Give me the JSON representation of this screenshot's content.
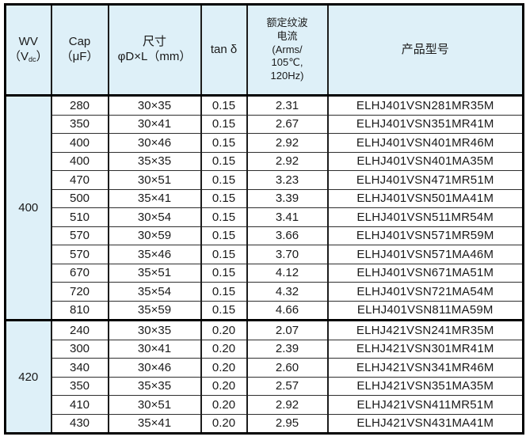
{
  "colors": {
    "header_bg": "#def0f8",
    "outer_border": "#000000",
    "row_line": "#2e2e2e"
  },
  "header": {
    "wv_line1": "WV",
    "wv_line2_pre": "（V",
    "wv_line2_sub": "dc",
    "wv_line2_post": "）",
    "cap_line1": "Cap",
    "cap_line2": "（μF）",
    "size_line1": "尺寸",
    "size_line2": "φD×L（mm）",
    "tand": "tan δ",
    "ripple_lines": [
      "额定纹波",
      "电流",
      "(Arms/",
      "105℃,",
      "120Hz)"
    ],
    "model": "产品型号"
  },
  "sections": [
    {
      "wv": "400",
      "rows": [
        {
          "cap": "280",
          "size": "30×35",
          "tand": "0.15",
          "ripple": "2.31",
          "model": "ELHJ401VSN281MR35M"
        },
        {
          "cap": "350",
          "size": "30×41",
          "tand": "0.15",
          "ripple": "2.67",
          "model": "ELHJ401VSN351MR41M"
        },
        {
          "cap": "400",
          "size": "30×46",
          "tand": "0.15",
          "ripple": "2.92",
          "model": "ELHJ401VSN401MR46M"
        },
        {
          "cap": "400",
          "size": "35×35",
          "tand": "0.15",
          "ripple": "2.92",
          "model": "ELHJ401VSN401MA35M"
        },
        {
          "cap": "470",
          "size": "30×51",
          "tand": "0.15",
          "ripple": "3.23",
          "model": "ELHJ401VSN471MR51M"
        },
        {
          "cap": "500",
          "size": "35×41",
          "tand": "0.15",
          "ripple": "3.39",
          "model": "ELHJ401VSN501MA41M"
        },
        {
          "cap": "510",
          "size": "30×54",
          "tand": "0.15",
          "ripple": "3.41",
          "model": "ELHJ401VSN511MR54M"
        },
        {
          "cap": "570",
          "size": "30×59",
          "tand": "0.15",
          "ripple": "3.66",
          "model": "ELHJ401VSN571MR59M"
        },
        {
          "cap": "570",
          "size": "35×46",
          "tand": "0.15",
          "ripple": "3.70",
          "model": "ELHJ401VSN571MA46M"
        },
        {
          "cap": "670",
          "size": "35×51",
          "tand": "0.15",
          "ripple": "4.12",
          "model": "ELHJ401VSN671MA51M"
        },
        {
          "cap": "720",
          "size": "35×54",
          "tand": "0.15",
          "ripple": "4.32",
          "model": "ELHJ401VSN721MA54M"
        },
        {
          "cap": "810",
          "size": "35×59",
          "tand": "0.15",
          "ripple": "4.66",
          "model": "ELHJ401VSN811MA59M"
        }
      ]
    },
    {
      "wv": "420",
      "rows": [
        {
          "cap": "240",
          "size": "30×35",
          "tand": "0.20",
          "ripple": "2.07",
          "model": "ELHJ421VSN241MR35M"
        },
        {
          "cap": "300",
          "size": "30×41",
          "tand": "0.20",
          "ripple": "2.39",
          "model": "ELHJ421VSN301MR41M"
        },
        {
          "cap": "340",
          "size": "30×46",
          "tand": "0.20",
          "ripple": "2.60",
          "model": "ELHJ421VSN341MR46M"
        },
        {
          "cap": "350",
          "size": "35×35",
          "tand": "0.20",
          "ripple": "2.57",
          "model": "ELHJ421VSN351MA35M"
        },
        {
          "cap": "410",
          "size": "30×51",
          "tand": "0.20",
          "ripple": "2.92",
          "model": "ELHJ421VSN411MR51M"
        },
        {
          "cap": "430",
          "size": "35×41",
          "tand": "0.20",
          "ripple": "2.95",
          "model": "ELHJ421VSN431MA41M"
        }
      ]
    }
  ]
}
